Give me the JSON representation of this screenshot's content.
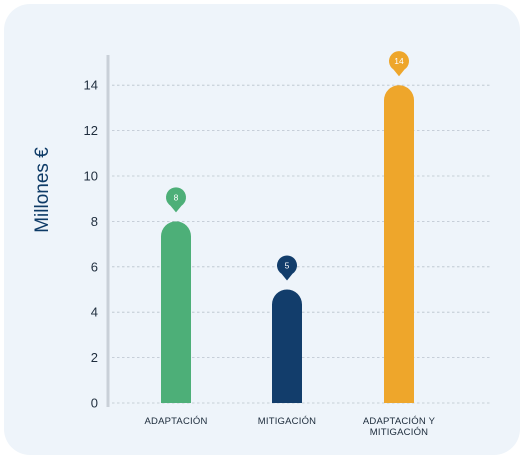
{
  "chart_data": {
    "type": "bar",
    "ylabel": "Millones €",
    "xlabel": "",
    "title": "",
    "ylim": [
      0,
      15
    ],
    "yticks": [
      0,
      2,
      4,
      6,
      8,
      10,
      12,
      14
    ],
    "grid": true,
    "categories": [
      [
        "ADAPTACIÓN"
      ],
      [
        "MITIGACIÓN"
      ],
      [
        "ADAPTACIÓN Y",
        "MITIGACIÓN"
      ]
    ],
    "values": [
      8,
      5,
      14
    ],
    "data_labels": [
      "8",
      "5",
      "14"
    ],
    "colors": [
      "#4daf78",
      "#123d6b",
      "#eea62b"
    ],
    "background_color": "#eef4fa",
    "axis_color": "#c9d0d8"
  }
}
